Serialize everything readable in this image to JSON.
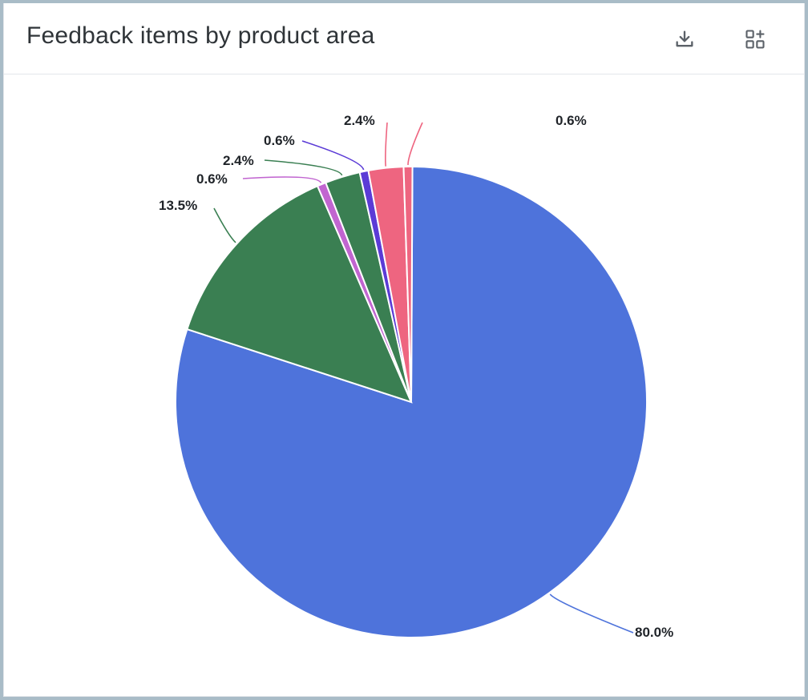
{
  "header": {
    "title": "Feedback items by product area",
    "download_icon": "download-icon",
    "add_icon": "add-widget-icon"
  },
  "chart_data": {
    "type": "pie",
    "title": "Feedback items by product area",
    "slices": [
      {
        "value": 80.0,
        "label": "80.0%",
        "color": "#4e73db"
      },
      {
        "value": 13.5,
        "label": "13.5%",
        "color": "#3a7f52"
      },
      {
        "value": 0.6,
        "label": "0.6%",
        "color": "#c165d0"
      },
      {
        "value": 2.4,
        "label": "2.4%",
        "color": "#3a7f52"
      },
      {
        "value": 0.6,
        "label": "0.6%",
        "color": "#5b3bd6"
      },
      {
        "value": 2.4,
        "label": "2.4%",
        "color": "#ee6580"
      },
      {
        "value": 0.6,
        "label": "0.6%",
        "color": "#ee6580"
      }
    ]
  }
}
